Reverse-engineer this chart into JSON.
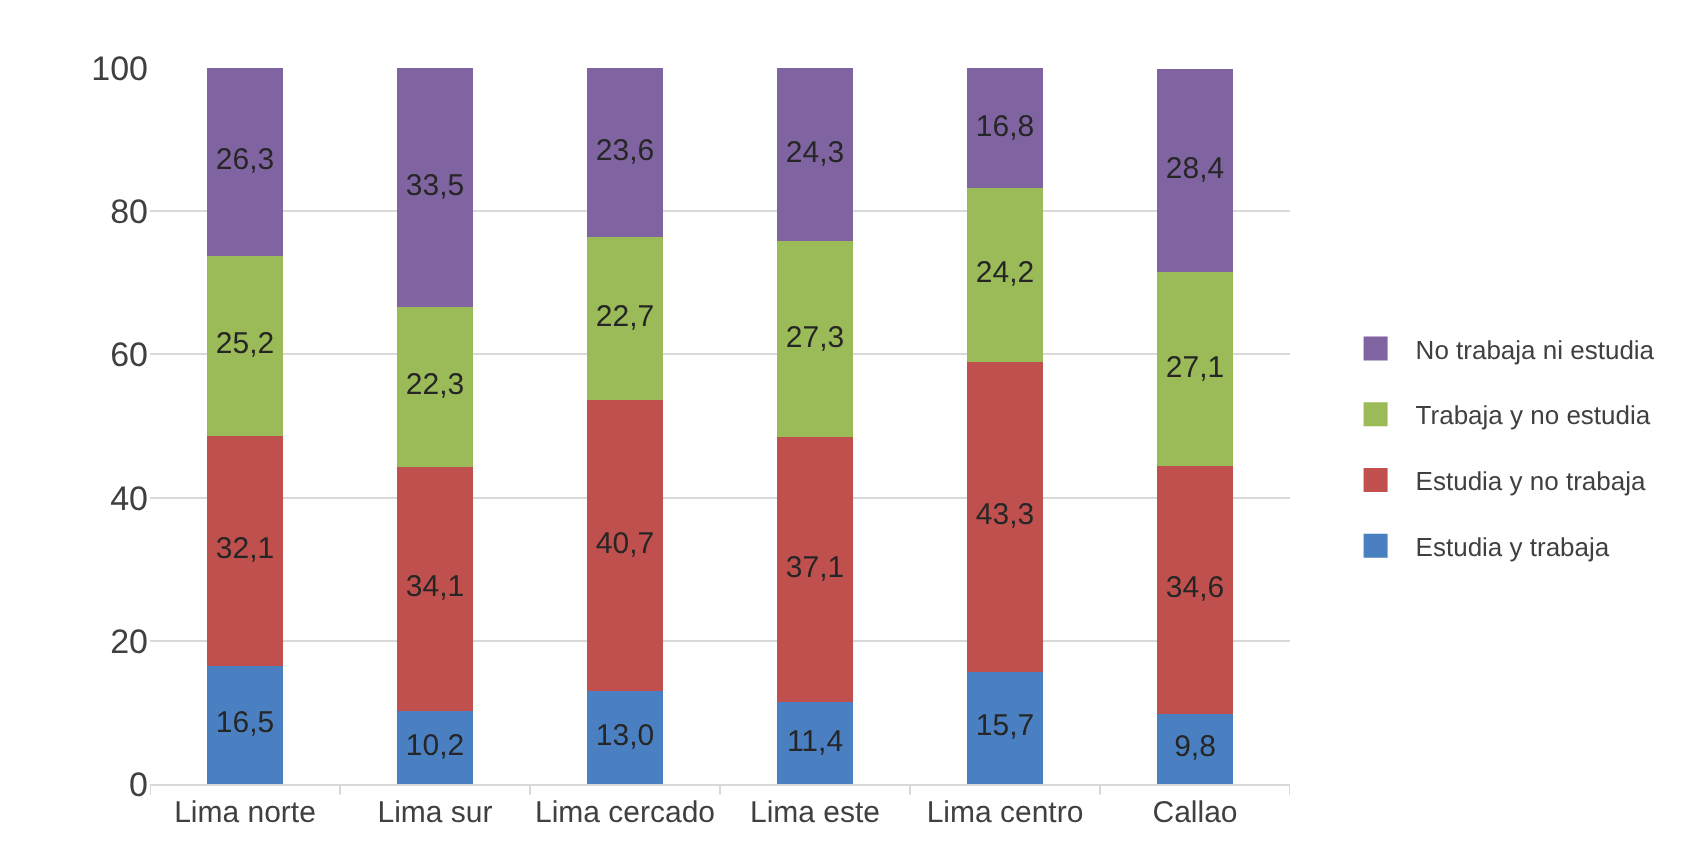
{
  "chart_data": {
    "type": "bar",
    "stacked": true,
    "categories": [
      "Lima norte",
      "Lima sur",
      "Lima cercado",
      "Lima este",
      "Lima centro",
      "Callao"
    ],
    "series": [
      {
        "name": "Estudia y trabaja",
        "color": "#4a7fc1",
        "values": [
          16.5,
          10.2,
          13.0,
          11.4,
          15.7,
          9.8
        ],
        "value_labels": [
          "16,5",
          "10,2",
          "13,0",
          "11,4",
          "15,7",
          "9,8"
        ]
      },
      {
        "name": "Estudia y no trabaja",
        "color": "#c0504d",
        "values": [
          32.1,
          34.1,
          40.7,
          37.1,
          43.3,
          34.6
        ],
        "value_labels": [
          "32,1",
          "34,1",
          "40,7",
          "37,1",
          "43,3",
          "34,6"
        ]
      },
      {
        "name": "Trabaja y no estudia",
        "color": "#9bbb59",
        "values": [
          25.2,
          22.3,
          22.7,
          27.3,
          24.2,
          27.1
        ],
        "value_labels": [
          "25,2",
          "22,3",
          "22,7",
          "27,3",
          "24,2",
          "27,1"
        ]
      },
      {
        "name": "No trabaja ni estudia",
        "color": "#8064a2",
        "values": [
          26.3,
          33.5,
          23.6,
          24.3,
          16.8,
          28.4
        ],
        "value_labels": [
          "26,3",
          "33,5",
          "23,6",
          "24,3",
          "16,8",
          "28,4"
        ]
      }
    ],
    "ylim": [
      0,
      100
    ],
    "yticks": [
      0,
      20,
      40,
      60,
      80,
      100
    ],
    "grid": "y",
    "legend": "right"
  }
}
